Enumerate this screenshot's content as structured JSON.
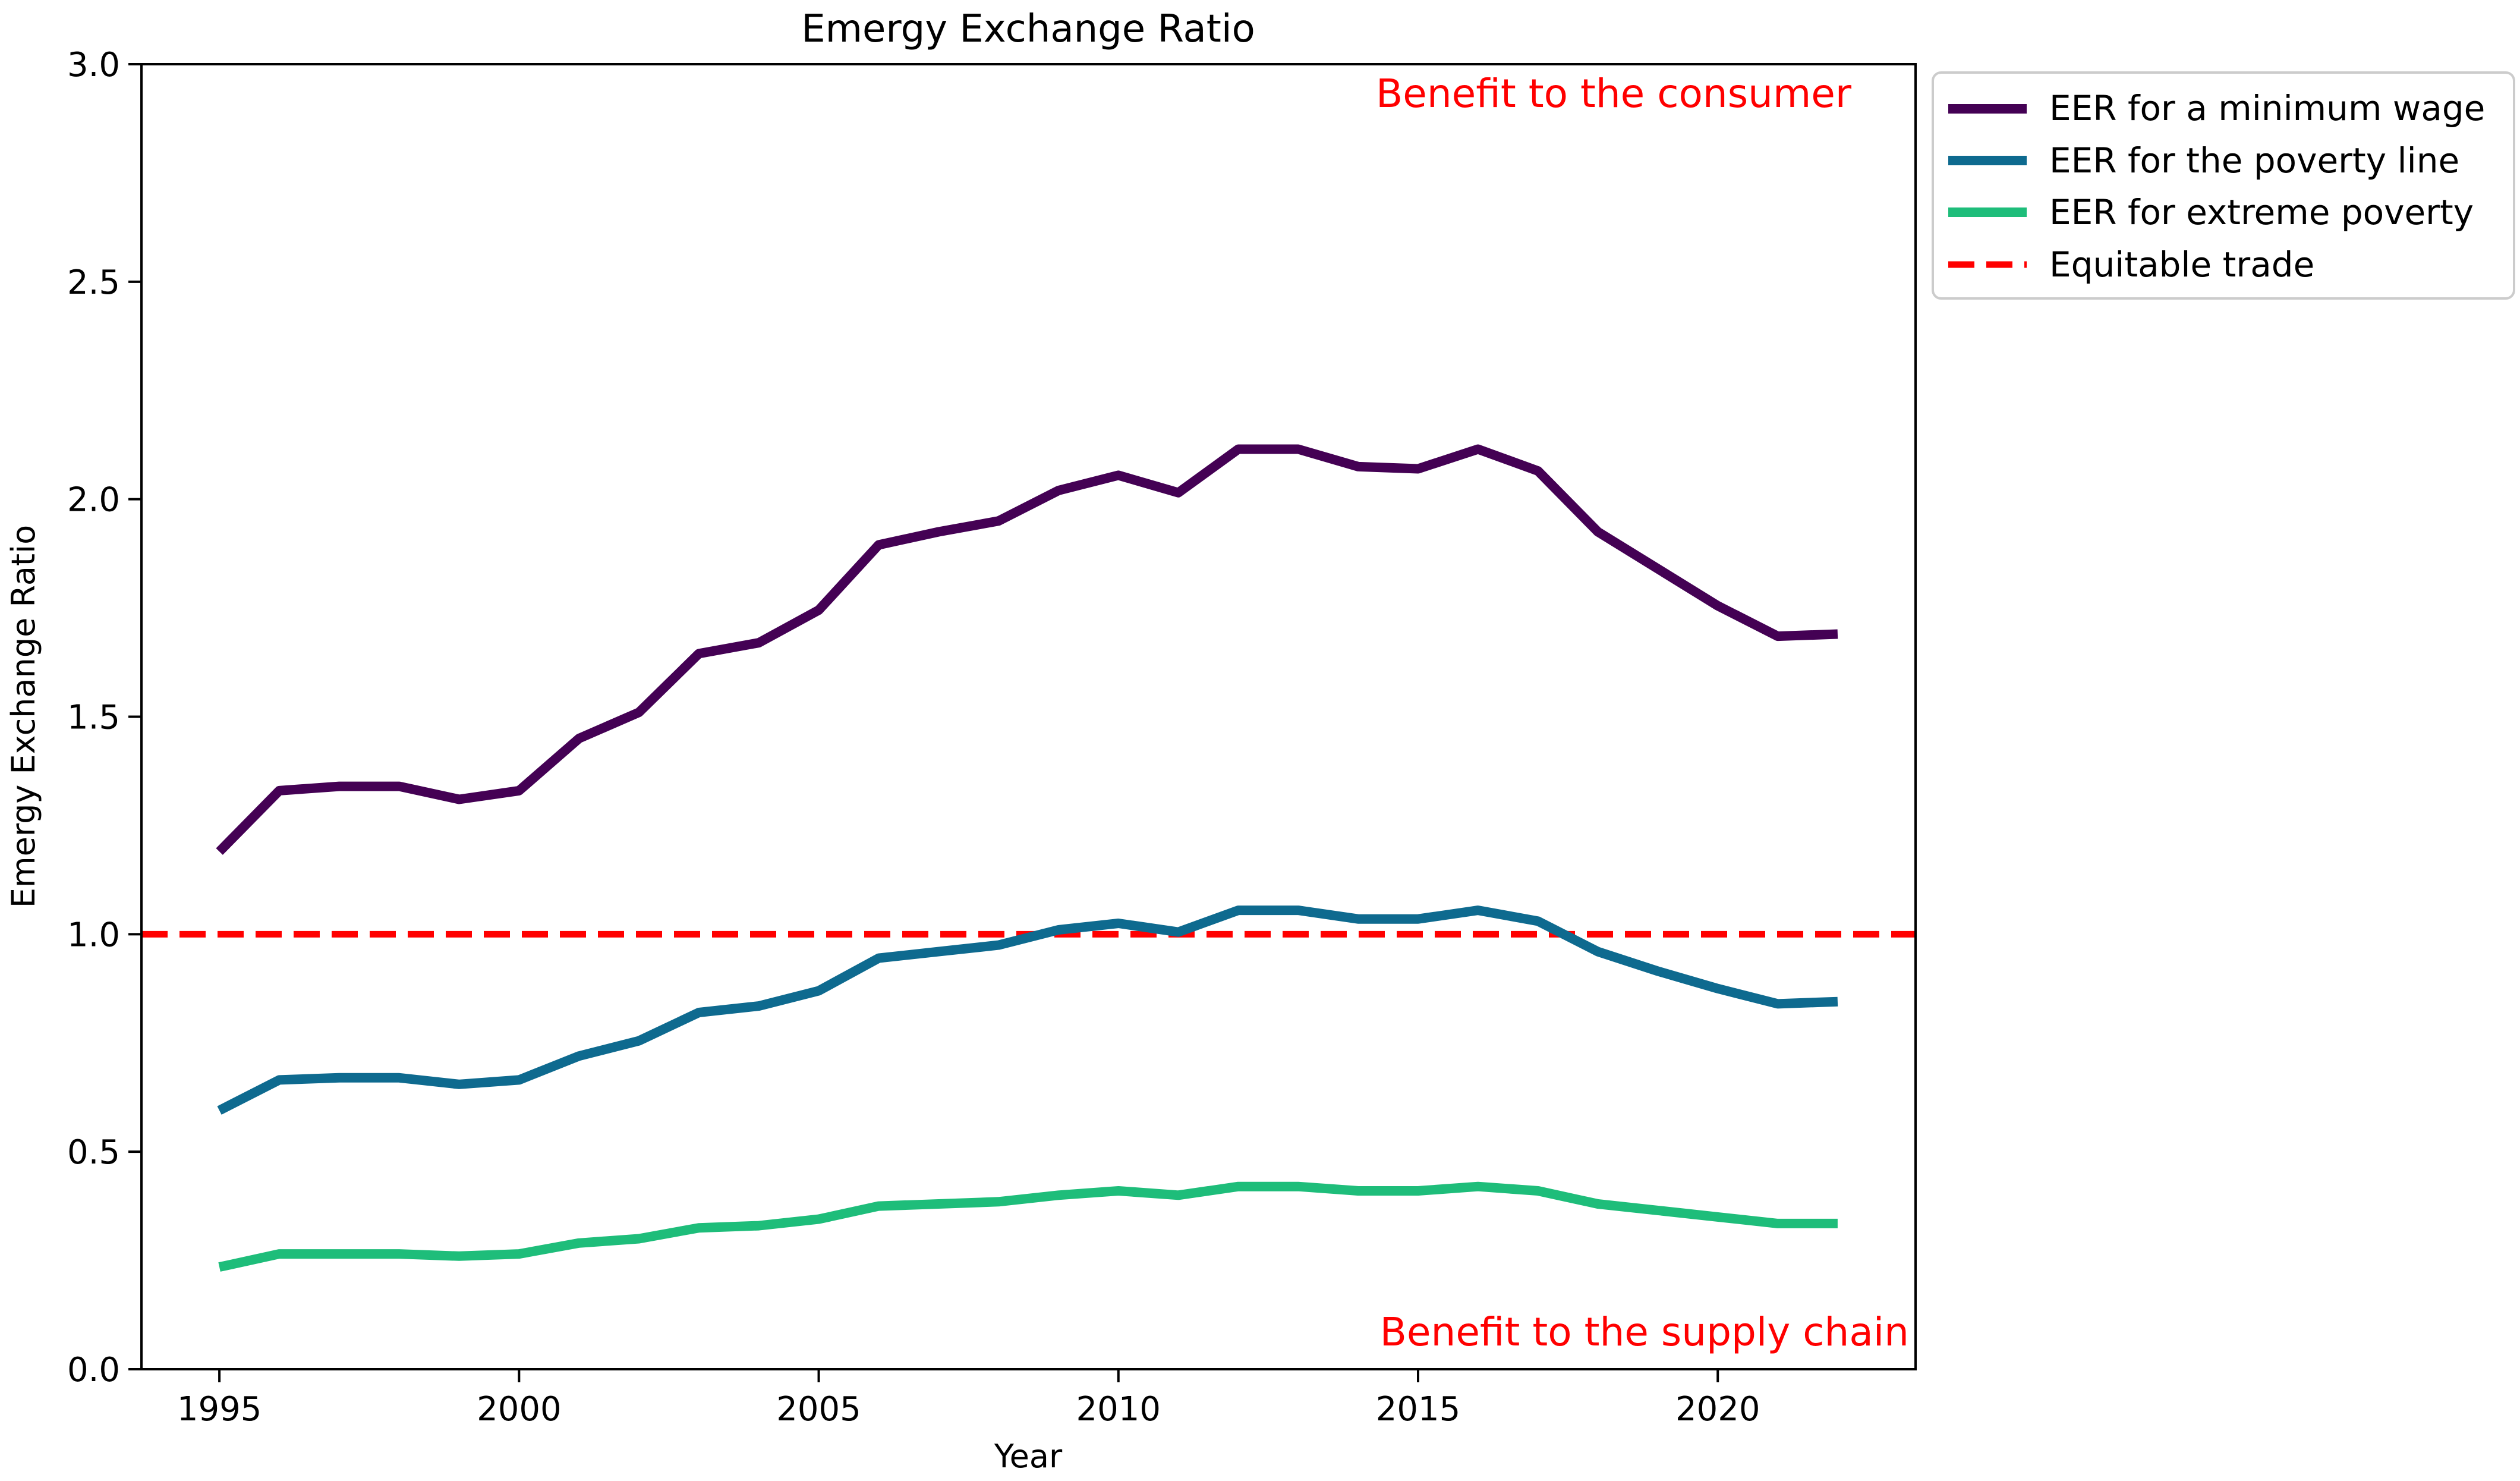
{
  "chart_data": {
    "type": "line",
    "title": "Emergy Exchange Ratio",
    "xlabel": "Year",
    "ylabel": "Emergy Exchange Ratio",
    "xlim": [
      1993.7,
      2023.3
    ],
    "ylim": [
      0.0,
      3.0
    ],
    "x_ticks": [
      1995,
      2000,
      2005,
      2010,
      2015,
      2020
    ],
    "x_tick_labels": [
      "1995",
      "2000",
      "2005",
      "2010",
      "2015",
      "2020"
    ],
    "y_ticks": [
      0.0,
      0.5,
      1.0,
      1.5,
      2.0,
      2.5,
      3.0
    ],
    "y_tick_labels": [
      "0.0",
      "0.5",
      "1.0",
      "1.5",
      "2.0",
      "2.5",
      "3.0"
    ],
    "grid": false,
    "legend_position": "outside-right-top",
    "x": [
      1995,
      1996,
      1997,
      1998,
      1999,
      2000,
      2001,
      2002,
      2003,
      2004,
      2005,
      2006,
      2007,
      2008,
      2009,
      2010,
      2011,
      2012,
      2013,
      2014,
      2015,
      2016,
      2017,
      2018,
      2019,
      2020,
      2021,
      2022
    ],
    "series": [
      {
        "name": "EER for a minimum wage",
        "color": "#440154",
        "style": "solid",
        "values": [
          1.19,
          1.33,
          1.34,
          1.34,
          1.31,
          1.33,
          1.45,
          1.51,
          1.645,
          1.67,
          1.745,
          1.895,
          1.925,
          1.95,
          2.02,
          2.055,
          2.015,
          2.115,
          2.115,
          2.075,
          2.07,
          2.115,
          2.065,
          1.925,
          1.84,
          1.755,
          1.685,
          1.69
        ]
      },
      {
        "name": "EER for the poverty line",
        "color": "#0e6a8f",
        "style": "solid",
        "values": [
          0.595,
          0.665,
          0.67,
          0.67,
          0.655,
          0.665,
          0.72,
          0.755,
          0.82,
          0.835,
          0.87,
          0.945,
          0.96,
          0.975,
          1.01,
          1.025,
          1.005,
          1.055,
          1.055,
          1.035,
          1.035,
          1.055,
          1.03,
          0.96,
          0.915,
          0.875,
          0.84,
          0.845
        ]
      },
      {
        "name": "EER for extreme poverty",
        "color": "#1ebd7a",
        "style": "solid",
        "values": [
          0.235,
          0.265,
          0.265,
          0.265,
          0.26,
          0.265,
          0.29,
          0.3,
          0.325,
          0.33,
          0.345,
          0.375,
          0.38,
          0.385,
          0.4,
          0.41,
          0.4,
          0.42,
          0.42,
          0.41,
          0.41,
          0.42,
          0.41,
          0.38,
          0.365,
          0.35,
          0.335,
          0.335
        ]
      }
    ],
    "reference_line": {
      "name": "Equitable trade",
      "y": 1.0,
      "color": "#ff0000",
      "style": "dashed"
    },
    "annotations": [
      {
        "text": "Benefit to the consumer",
        "color": "#ff0000",
        "position": "top-right"
      },
      {
        "text": "Benefit to the supply chain",
        "color": "#ff0000",
        "position": "bottom-right"
      }
    ]
  }
}
